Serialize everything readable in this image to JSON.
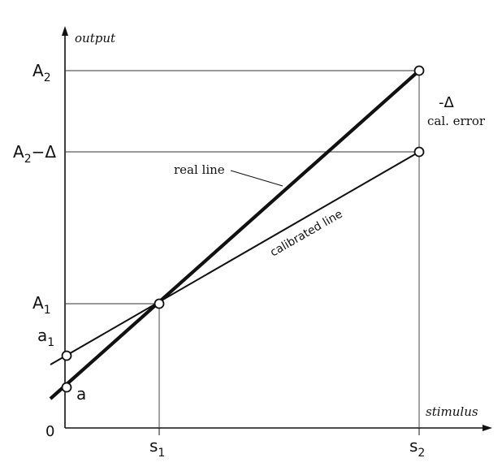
{
  "axes": {
    "y_label": "output",
    "x_label": "stimulus",
    "origin_label": "0"
  },
  "y_ticks": {
    "A2": {
      "main": "A",
      "sub": "2"
    },
    "A2_minus_delta": {
      "main": "A",
      "sub": "2",
      "suffix": "−Δ"
    },
    "A1": {
      "main": "A",
      "sub": "1"
    },
    "a1": {
      "main": "a",
      "sub": "1"
    },
    "a": {
      "main": "a"
    }
  },
  "x_ticks": {
    "s1": {
      "main": "s",
      "sub": "1"
    },
    "s2": {
      "main": "s",
      "sub": "2"
    }
  },
  "annotations": {
    "delta": "-Δ",
    "cal_error": "cal. error",
    "real_line": "real line",
    "calibrated_line": "calibrated line"
  },
  "colors": {
    "line": "#111111",
    "grid": "#333333",
    "point_fill": "#ffffff"
  }
}
